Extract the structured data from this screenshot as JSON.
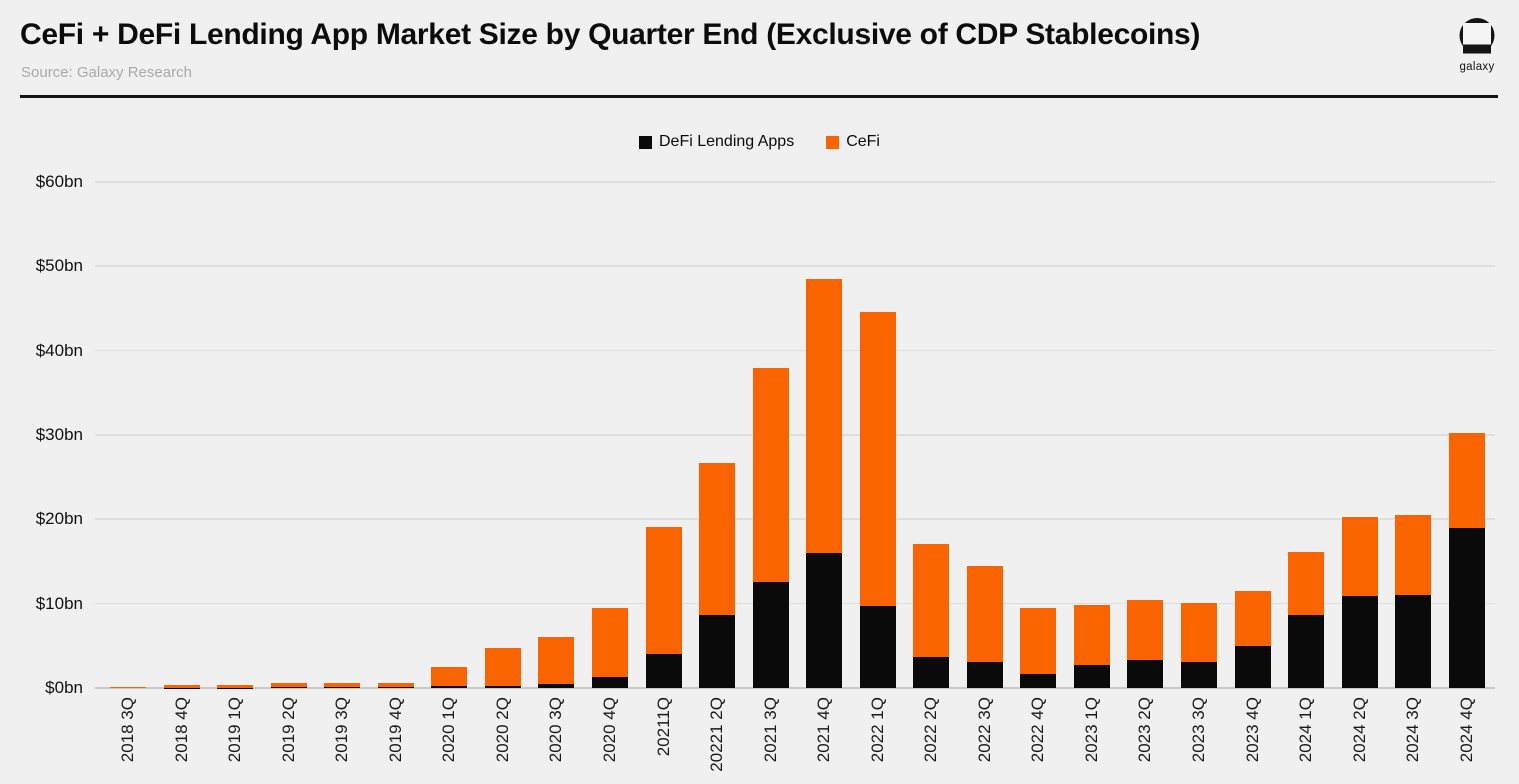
{
  "header": {
    "title": "CeFi + DeFi Lending App Market Size by Quarter End (Exclusive of CDP Stablecoins)",
    "source": "Source: Galaxy Research",
    "logo_text": "galaxy"
  },
  "legend": [
    {
      "label": "DeFi Lending Apps",
      "color": "#0a0a0b"
    },
    {
      "label": "CeFi",
      "color": "#fa6400"
    }
  ],
  "colors": {
    "background": "#f0f0f0",
    "defi": "#0a0a0b",
    "cefi": "#fa6400",
    "gridline": "#dedede",
    "baseline": "#c9c9c9"
  },
  "chart_data": {
    "type": "bar",
    "stacked": true,
    "title": "CeFi + DeFi Lending App Market Size by Quarter End (Exclusive of CDP Stablecoins)",
    "xlabel": "",
    "ylabel": "",
    "ylim": [
      0,
      60
    ],
    "grid": "horizontal",
    "legend_position": "top-center",
    "categories": [
      "2018 3Q",
      "2018 4Q",
      "2019 1Q",
      "2019 2Q",
      "2019 3Q",
      "2019 4Q",
      "2020 1Q",
      "2020 2Q",
      "2020 3Q",
      "2020 4Q",
      "20211Q",
      "20221 2Q",
      "2021 3Q",
      "2021 4Q",
      "2022 1Q",
      "2022 2Q",
      "2022 3Q",
      "2022 4Q",
      "2023 1Q",
      "2023 2Q",
      "2023 3Q",
      "2023 4Q",
      "2024 1Q",
      "2024 2Q",
      "2024 3Q",
      "2024 4Q"
    ],
    "series": [
      {
        "name": "DeFi Lending Apps",
        "color": "#0a0a0b",
        "values": [
          0,
          0.05,
          0.05,
          0.1,
          0.1,
          0.15,
          0.2,
          0.25,
          0.45,
          1.3,
          4.0,
          8.6,
          12.6,
          16.0,
          9.7,
          3.7,
          3.1,
          1.7,
          2.7,
          3.3,
          3.1,
          5.0,
          8.7,
          10.9,
          11.0,
          19.0
        ]
      },
      {
        "name": "CeFi",
        "color": "#fa6400",
        "values": [
          0.1,
          0.25,
          0.25,
          0.45,
          0.45,
          0.5,
          2.3,
          4.45,
          5.65,
          8.2,
          15.1,
          18.1,
          25.4,
          32.5,
          34.9,
          13.4,
          11.4,
          7.8,
          7.1,
          7.1,
          7.0,
          6.5,
          7.4,
          9.4,
          9.5,
          11.2
        ]
      }
    ],
    "yticks": [
      {
        "value": 0,
        "label": "$0bn"
      },
      {
        "value": 10,
        "label": "$10bn"
      },
      {
        "value": 20,
        "label": "$20bn"
      },
      {
        "value": 30,
        "label": "$30bn"
      },
      {
        "value": 40,
        "label": "$40bn"
      },
      {
        "value": 50,
        "label": "$50bn"
      },
      {
        "value": 60,
        "label": "$60bn"
      }
    ]
  }
}
